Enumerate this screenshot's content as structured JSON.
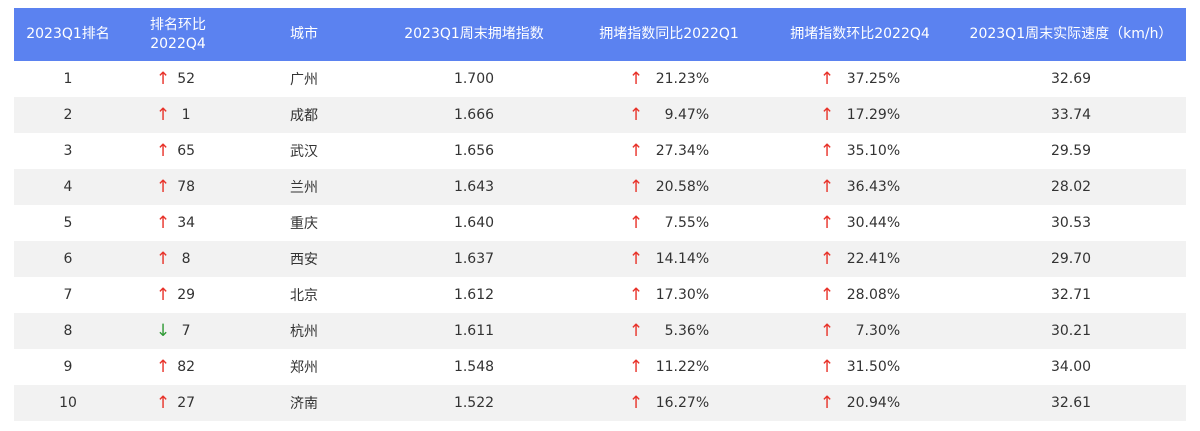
{
  "headers": [
    "2023Q1排名",
    "排名环比\n2022Q4",
    "城市",
    "2023Q1周末拥堵指数",
    "拥堵指数同比2022Q1",
    "拥堵指数环比2022Q4",
    "2023Q1周末实际速度（km/h）"
  ],
  "colors": {
    "header_bg": "#5b82f0",
    "up": "#e8332a",
    "down": "#2f9a35",
    "stripe": "#f2f2f2"
  },
  "arrow_glyphs": {
    "up": "↑",
    "down": "↓"
  },
  "rows": [
    {
      "rank": "1",
      "rank_change_dir": "up",
      "rank_change": "52",
      "city": "广州",
      "index": "1.700",
      "yoy_dir": "up",
      "yoy": "21.23%",
      "qoq_dir": "up",
      "qoq": "37.25%",
      "speed": "32.69"
    },
    {
      "rank": "2",
      "rank_change_dir": "up",
      "rank_change": "1",
      "city": "成都",
      "index": "1.666",
      "yoy_dir": "up",
      "yoy": "9.47%",
      "qoq_dir": "up",
      "qoq": "17.29%",
      "speed": "33.74"
    },
    {
      "rank": "3",
      "rank_change_dir": "up",
      "rank_change": "65",
      "city": "武汉",
      "index": "1.656",
      "yoy_dir": "up",
      "yoy": "27.34%",
      "qoq_dir": "up",
      "qoq": "35.10%",
      "speed": "29.59"
    },
    {
      "rank": "4",
      "rank_change_dir": "up",
      "rank_change": "78",
      "city": "兰州",
      "index": "1.643",
      "yoy_dir": "up",
      "yoy": "20.58%",
      "qoq_dir": "up",
      "qoq": "36.43%",
      "speed": "28.02"
    },
    {
      "rank": "5",
      "rank_change_dir": "up",
      "rank_change": "34",
      "city": "重庆",
      "index": "1.640",
      "yoy_dir": "up",
      "yoy": "7.55%",
      "qoq_dir": "up",
      "qoq": "30.44%",
      "speed": "30.53"
    },
    {
      "rank": "6",
      "rank_change_dir": "up",
      "rank_change": "8",
      "city": "西安",
      "index": "1.637",
      "yoy_dir": "up",
      "yoy": "14.14%",
      "qoq_dir": "up",
      "qoq": "22.41%",
      "speed": "29.70"
    },
    {
      "rank": "7",
      "rank_change_dir": "up",
      "rank_change": "29",
      "city": "北京",
      "index": "1.612",
      "yoy_dir": "up",
      "yoy": "17.30%",
      "qoq_dir": "up",
      "qoq": "28.08%",
      "speed": "32.71"
    },
    {
      "rank": "8",
      "rank_change_dir": "down",
      "rank_change": "7",
      "city": "杭州",
      "index": "1.611",
      "yoy_dir": "up",
      "yoy": "5.36%",
      "qoq_dir": "up",
      "qoq": "7.30%",
      "speed": "30.21"
    },
    {
      "rank": "9",
      "rank_change_dir": "up",
      "rank_change": "82",
      "city": "郑州",
      "index": "1.548",
      "yoy_dir": "up",
      "yoy": "11.22%",
      "qoq_dir": "up",
      "qoq": "31.50%",
      "speed": "34.00"
    },
    {
      "rank": "10",
      "rank_change_dir": "up",
      "rank_change": "27",
      "city": "济南",
      "index": "1.522",
      "yoy_dir": "up",
      "yoy": "16.27%",
      "qoq_dir": "up",
      "qoq": "20.94%",
      "speed": "32.61"
    }
  ]
}
